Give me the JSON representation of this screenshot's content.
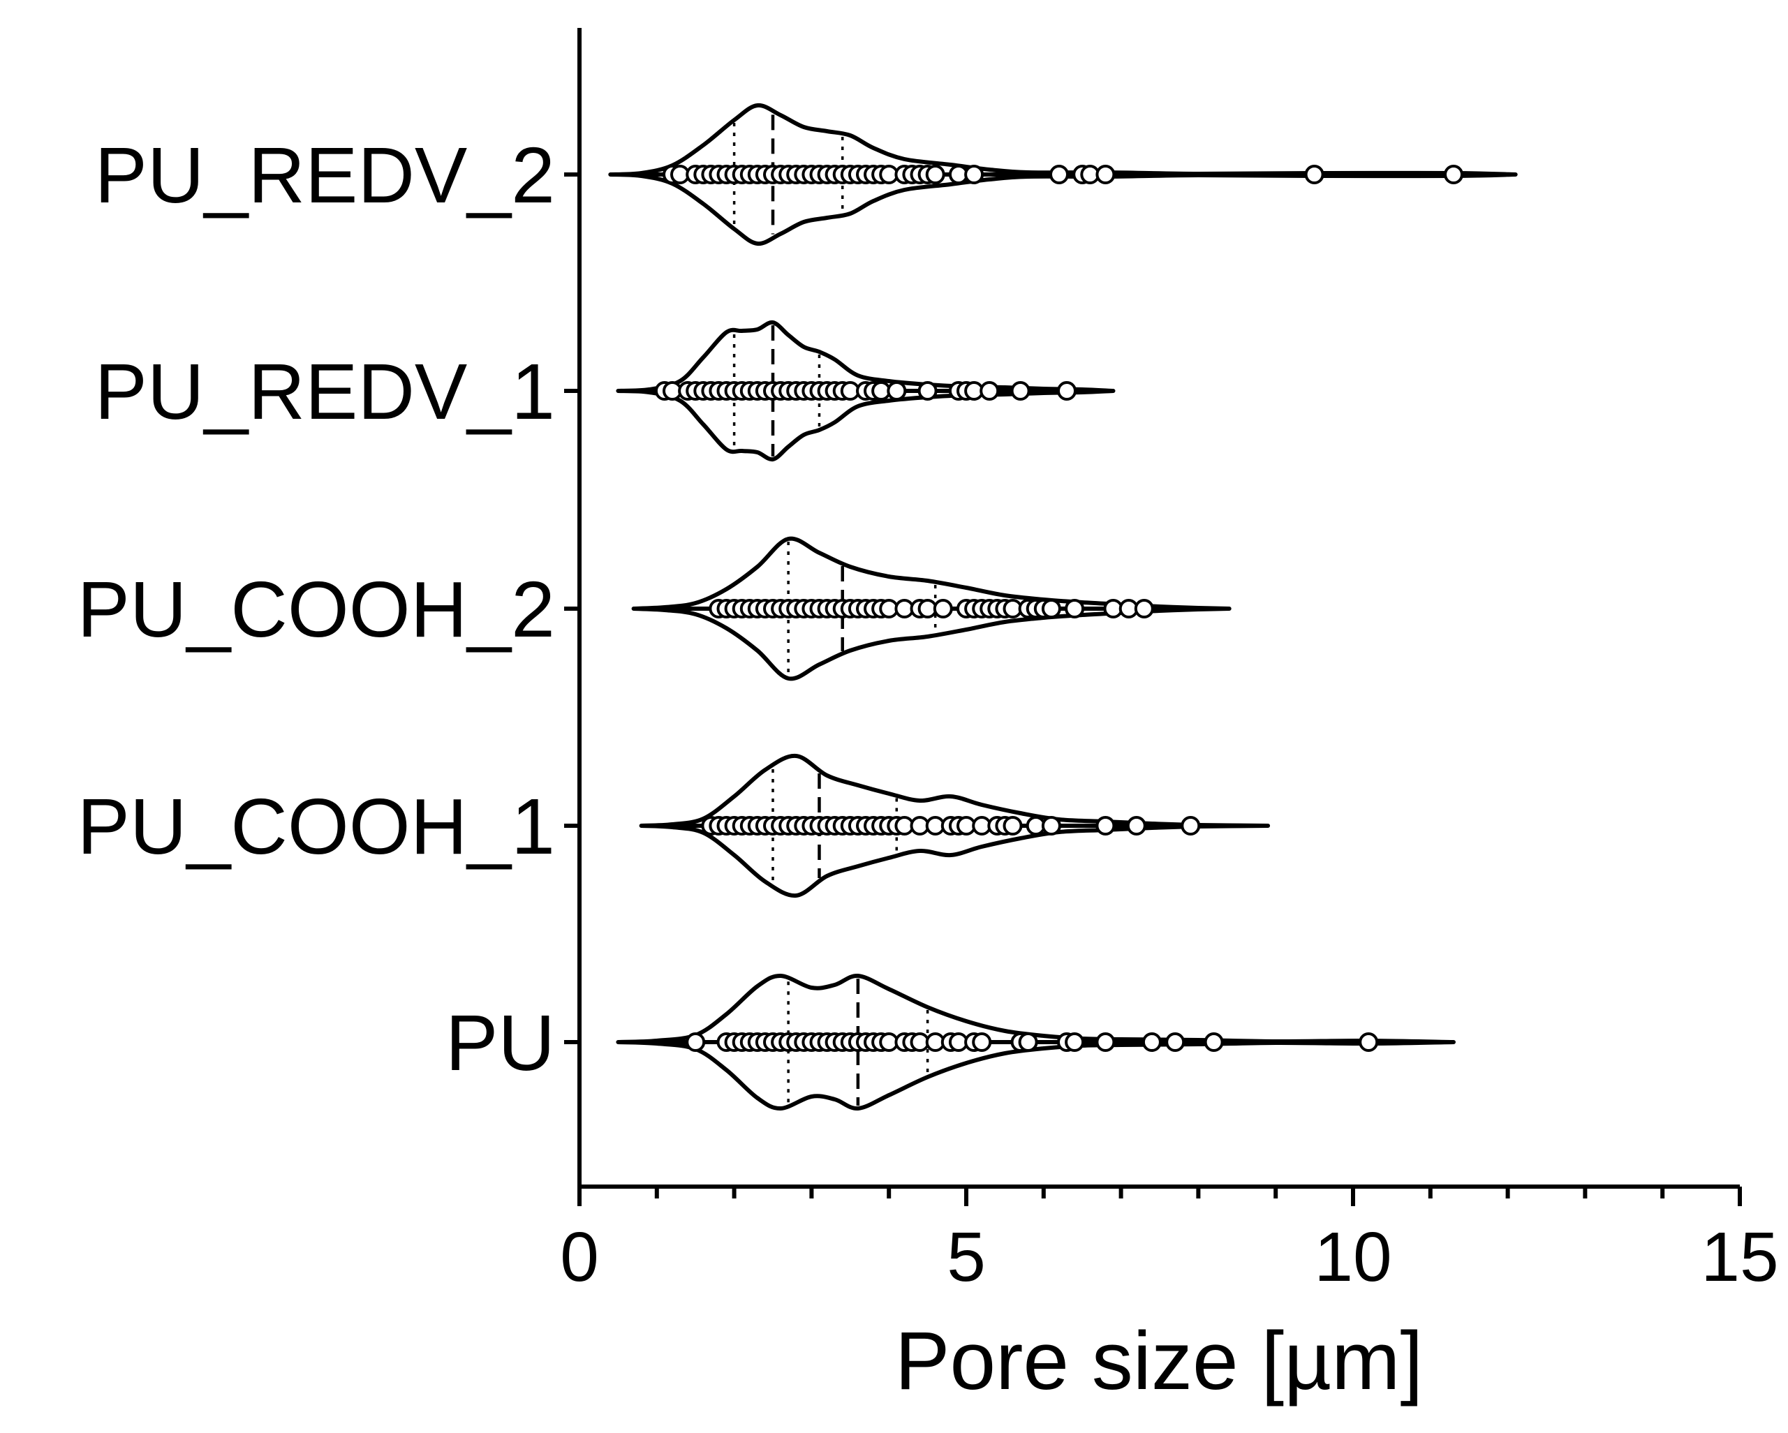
{
  "chart_data": {
    "type": "violin",
    "orientation": "horizontal",
    "title": "",
    "xlabel": "Pore size [µm]",
    "ylabel": "",
    "xlim": [
      0,
      15
    ],
    "xticks_major": [
      0,
      5,
      10,
      15
    ],
    "xtick_labels": [
      "0",
      "5",
      "10",
      "15"
    ],
    "xticks_minor_step": 1,
    "grid": false,
    "legend": "none",
    "categories": [
      "PU_REDV_2",
      "PU_REDV_1",
      "PU_COOH_2",
      "PU_COOH_1",
      "PU"
    ],
    "series": [
      {
        "name": "PU_REDV_2",
        "min": 0.4,
        "max": 12.1,
        "q1": 2.0,
        "median": 2.5,
        "q3": 3.4,
        "density": [
          [
            0.4,
            0.0
          ],
          [
            0.8,
            0.02
          ],
          [
            1.2,
            0.13
          ],
          [
            1.6,
            0.42
          ],
          [
            2.0,
            0.78
          ],
          [
            2.3,
            0.99
          ],
          [
            2.6,
            0.85
          ],
          [
            2.9,
            0.68
          ],
          [
            3.2,
            0.62
          ],
          [
            3.5,
            0.56
          ],
          [
            3.8,
            0.38
          ],
          [
            4.2,
            0.22
          ],
          [
            4.8,
            0.14
          ],
          [
            5.3,
            0.07
          ],
          [
            5.8,
            0.03
          ],
          [
            6.8,
            0.03
          ],
          [
            8.0,
            0.01
          ],
          [
            9.5,
            0.02
          ],
          [
            11.3,
            0.02
          ],
          [
            12.1,
            0.0
          ]
        ],
        "points": [
          1.2,
          1.3,
          1.5,
          1.6,
          1.7,
          1.8,
          1.9,
          2.0,
          2.1,
          2.2,
          2.3,
          2.4,
          2.5,
          2.6,
          2.7,
          2.8,
          2.9,
          3.0,
          3.1,
          3.2,
          3.3,
          3.4,
          3.5,
          3.6,
          3.7,
          3.8,
          3.9,
          4.0,
          4.2,
          4.3,
          4.4,
          4.5,
          4.6,
          4.9,
          5.1,
          6.2,
          6.5,
          6.6,
          6.8,
          9.5,
          11.3
        ]
      },
      {
        "name": "PU_REDV_1",
        "min": 0.5,
        "max": 6.9,
        "q1": 2.0,
        "median": 2.5,
        "q3": 3.1,
        "density": [
          [
            0.5,
            0.0
          ],
          [
            0.9,
            0.02
          ],
          [
            1.3,
            0.14
          ],
          [
            1.6,
            0.48
          ],
          [
            1.9,
            0.84
          ],
          [
            2.1,
            0.86
          ],
          [
            2.3,
            0.88
          ],
          [
            2.5,
            0.98
          ],
          [
            2.7,
            0.8
          ],
          [
            2.9,
            0.63
          ],
          [
            3.1,
            0.56
          ],
          [
            3.3,
            0.45
          ],
          [
            3.6,
            0.22
          ],
          [
            4.0,
            0.14
          ],
          [
            4.5,
            0.09
          ],
          [
            5.0,
            0.06
          ],
          [
            5.5,
            0.05
          ],
          [
            6.0,
            0.03
          ],
          [
            6.5,
            0.02
          ],
          [
            6.9,
            0.0
          ]
        ],
        "points": [
          1.1,
          1.2,
          1.4,
          1.5,
          1.6,
          1.7,
          1.8,
          1.9,
          2.0,
          2.1,
          2.2,
          2.3,
          2.4,
          2.5,
          2.6,
          2.7,
          2.8,
          2.9,
          3.0,
          3.1,
          3.2,
          3.3,
          3.4,
          3.5,
          3.7,
          3.8,
          3.9,
          4.1,
          4.5,
          4.9,
          5.0,
          5.1,
          5.3,
          5.7,
          6.3
        ]
      },
      {
        "name": "PU_COOH_2",
        "min": 0.7,
        "max": 8.4,
        "q1": 2.7,
        "median": 3.4,
        "q3": 4.6,
        "density": [
          [
            0.7,
            0.0
          ],
          [
            1.1,
            0.02
          ],
          [
            1.5,
            0.08
          ],
          [
            1.9,
            0.28
          ],
          [
            2.3,
            0.6
          ],
          [
            2.7,
            1.0
          ],
          [
            3.1,
            0.8
          ],
          [
            3.5,
            0.6
          ],
          [
            4.0,
            0.46
          ],
          [
            4.5,
            0.4
          ],
          [
            5.0,
            0.3
          ],
          [
            5.5,
            0.19
          ],
          [
            6.0,
            0.13
          ],
          [
            6.5,
            0.09
          ],
          [
            7.0,
            0.06
          ],
          [
            7.5,
            0.03
          ],
          [
            8.0,
            0.01
          ],
          [
            8.4,
            0.0
          ]
        ],
        "points": [
          1.8,
          1.9,
          2.0,
          2.1,
          2.2,
          2.3,
          2.4,
          2.5,
          2.6,
          2.7,
          2.8,
          2.9,
          3.0,
          3.1,
          3.2,
          3.3,
          3.4,
          3.5,
          3.6,
          3.7,
          3.8,
          3.9,
          4.0,
          4.2,
          4.4,
          4.5,
          4.7,
          5.0,
          5.1,
          5.2,
          5.3,
          5.4,
          5.5,
          5.6,
          5.8,
          5.9,
          6.0,
          6.1,
          6.4,
          6.9,
          7.1,
          7.3
        ]
      },
      {
        "name": "PU_COOH_1",
        "min": 0.8,
        "max": 8.9,
        "q1": 2.5,
        "median": 3.1,
        "q3": 4.1,
        "density": [
          [
            0.8,
            0.0
          ],
          [
            1.2,
            0.02
          ],
          [
            1.6,
            0.1
          ],
          [
            2.0,
            0.42
          ],
          [
            2.4,
            0.8
          ],
          [
            2.8,
            1.0
          ],
          [
            3.2,
            0.72
          ],
          [
            3.6,
            0.58
          ],
          [
            4.0,
            0.46
          ],
          [
            4.4,
            0.36
          ],
          [
            4.8,
            0.42
          ],
          [
            5.2,
            0.3
          ],
          [
            5.7,
            0.18
          ],
          [
            6.2,
            0.09
          ],
          [
            6.8,
            0.06
          ],
          [
            7.4,
            0.03
          ],
          [
            8.0,
            0.01
          ],
          [
            8.9,
            0.0
          ]
        ],
        "points": [
          1.7,
          1.8,
          1.9,
          2.0,
          2.1,
          2.2,
          2.3,
          2.4,
          2.5,
          2.6,
          2.7,
          2.8,
          2.9,
          3.0,
          3.1,
          3.2,
          3.3,
          3.4,
          3.5,
          3.6,
          3.7,
          3.8,
          3.9,
          4.0,
          4.1,
          4.2,
          4.4,
          4.6,
          4.8,
          4.9,
          5.0,
          5.2,
          5.4,
          5.5,
          5.6,
          5.9,
          6.1,
          6.8,
          7.2,
          7.9
        ]
      },
      {
        "name": "PU",
        "min": 0.5,
        "max": 11.3,
        "q1": 2.7,
        "median": 3.6,
        "q3": 4.5,
        "density": [
          [
            0.5,
            0.0
          ],
          [
            1.0,
            0.02
          ],
          [
            1.5,
            0.1
          ],
          [
            1.9,
            0.4
          ],
          [
            2.3,
            0.8
          ],
          [
            2.6,
            0.95
          ],
          [
            3.0,
            0.78
          ],
          [
            3.3,
            0.82
          ],
          [
            3.6,
            0.95
          ],
          [
            4.0,
            0.76
          ],
          [
            4.5,
            0.5
          ],
          [
            5.0,
            0.3
          ],
          [
            5.5,
            0.16
          ],
          [
            6.0,
            0.09
          ],
          [
            6.5,
            0.05
          ],
          [
            7.0,
            0.04
          ],
          [
            8.0,
            0.03
          ],
          [
            9.0,
            0.01
          ],
          [
            10.2,
            0.02
          ],
          [
            11.3,
            0.0
          ]
        ],
        "points": [
          1.5,
          1.9,
          2.0,
          2.1,
          2.2,
          2.3,
          2.4,
          2.5,
          2.6,
          2.7,
          2.8,
          2.9,
          3.0,
          3.1,
          3.2,
          3.3,
          3.4,
          3.5,
          3.6,
          3.7,
          3.8,
          3.9,
          4.0,
          4.2,
          4.3,
          4.4,
          4.6,
          4.8,
          4.9,
          5.1,
          5.2,
          5.7,
          5.8,
          6.3,
          6.4,
          6.8,
          7.4,
          7.7,
          8.2,
          10.2
        ]
      }
    ]
  }
}
